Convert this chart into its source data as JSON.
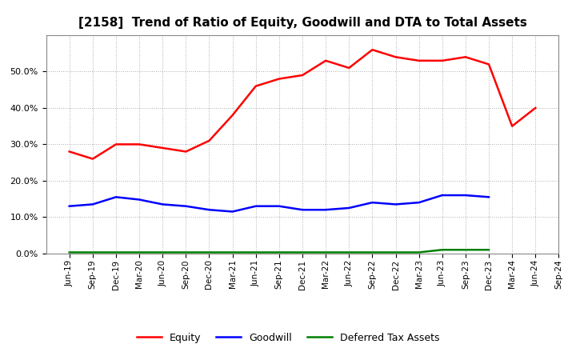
{
  "title": "[2158]  Trend of Ratio of Equity, Goodwill and DTA to Total Assets",
  "x_labels": [
    "Jun-19",
    "Sep-19",
    "Dec-19",
    "Mar-20",
    "Jun-20",
    "Sep-20",
    "Dec-20",
    "Mar-21",
    "Jun-21",
    "Sep-21",
    "Dec-21",
    "Mar-22",
    "Jun-22",
    "Sep-22",
    "Dec-22",
    "Mar-23",
    "Jun-23",
    "Sep-23",
    "Dec-23",
    "Mar-24",
    "Jun-24",
    "Sep-24"
  ],
  "equity": [
    0.28,
    0.26,
    0.3,
    0.3,
    0.29,
    0.28,
    0.31,
    0.38,
    0.46,
    0.48,
    0.49,
    0.53,
    0.51,
    0.56,
    0.54,
    0.53,
    0.53,
    0.54,
    0.52,
    0.35,
    0.4,
    null
  ],
  "goodwill": [
    0.13,
    0.135,
    0.155,
    0.148,
    0.135,
    0.13,
    0.12,
    0.115,
    0.13,
    0.13,
    0.12,
    0.12,
    0.125,
    0.14,
    0.135,
    0.14,
    0.16,
    0.16,
    0.155,
    null,
    null,
    null
  ],
  "dta": [
    0.003,
    0.003,
    0.003,
    0.003,
    0.003,
    0.003,
    0.003,
    0.003,
    0.003,
    0.003,
    0.003,
    0.003,
    0.003,
    0.003,
    0.003,
    0.003,
    0.01,
    0.01,
    0.01,
    null,
    null,
    null
  ],
  "equity_color": "#FF0000",
  "goodwill_color": "#0000FF",
  "dta_color": "#008000",
  "line_width": 1.8,
  "ylim": [
    0.0,
    0.6
  ],
  "yticks": [
    0.0,
    0.1,
    0.2,
    0.3,
    0.4,
    0.5
  ],
  "background_color": "#FFFFFF",
  "grid_color": "#999999",
  "title_fontsize": 11,
  "legend_labels": [
    "Equity",
    "Goodwill",
    "Deferred Tax Assets"
  ]
}
